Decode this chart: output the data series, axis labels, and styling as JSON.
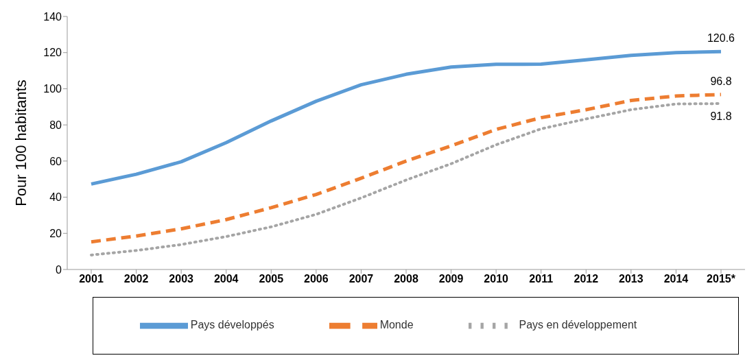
{
  "chart_data": {
    "type": "line",
    "ylabel": "Pour 100 habitants",
    "categories": [
      "2001",
      "2002",
      "2003",
      "2004",
      "2005",
      "2006",
      "2007",
      "2008",
      "2009",
      "2010",
      "2011",
      "2012",
      "2013",
      "2014",
      "2015*"
    ],
    "series": [
      {
        "name": "Pays développés",
        "color": "#5b9bd5",
        "line_style": "solid",
        "values": [
          47.3,
          52.7,
          59.6,
          70.2,
          82.2,
          93.1,
          102.2,
          108,
          112,
          113.5,
          113.6,
          116,
          118.5,
          120,
          120.6
        ],
        "value_labels": [
          null,
          null,
          null,
          null,
          null,
          null,
          null,
          null,
          null,
          null,
          null,
          null,
          null,
          null,
          "120.6"
        ]
      },
      {
        "name": "Monde",
        "color": "#ed7d31",
        "line_style": "dashed",
        "values": [
          15.3,
          18.5,
          22.5,
          27.6,
          34.2,
          41.5,
          50.5,
          60,
          68.4,
          77.5,
          84,
          88.4,
          93.5,
          96,
          96.8
        ],
        "value_labels": [
          null,
          null,
          null,
          null,
          null,
          null,
          null,
          null,
          null,
          null,
          null,
          null,
          null,
          null,
          "96.8"
        ]
      },
      {
        "name": "Pays en développement",
        "color": "#a5a5a5",
        "line_style": "dotted",
        "values": [
          8,
          10.5,
          13.8,
          18.2,
          23.6,
          30.5,
          39.6,
          49.5,
          58.5,
          69,
          77.8,
          83.3,
          88.4,
          91.6,
          91.8
        ],
        "value_labels": [
          null,
          null,
          null,
          null,
          null,
          null,
          null,
          null,
          null,
          null,
          null,
          null,
          null,
          null,
          "91.8"
        ]
      }
    ],
    "ylim": [
      0,
      140
    ],
    "yticks": [
      0,
      20,
      40,
      60,
      80,
      100,
      120,
      140
    ],
    "grid": false,
    "legend": "bottom",
    "marker": "none"
  }
}
